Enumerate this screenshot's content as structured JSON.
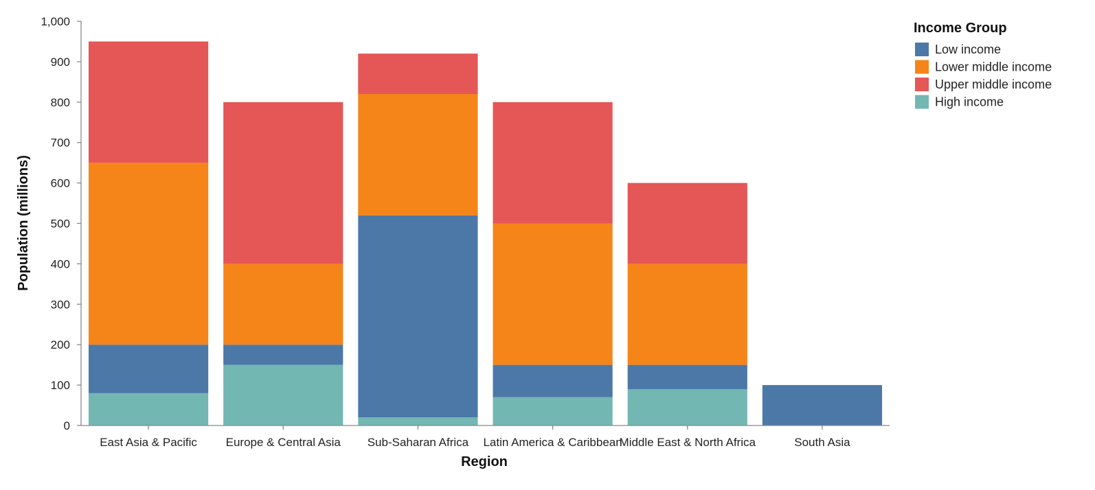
{
  "chart_data": {
    "type": "bar",
    "stacked": true,
    "xlabel": "Region",
    "ylabel": "Population (millions)",
    "ylim": [
      0,
      1000
    ],
    "yticks": [
      0,
      100,
      200,
      300,
      400,
      500,
      600,
      700,
      800,
      900,
      1000
    ],
    "ytick_labels": [
      "0",
      "100",
      "200",
      "300",
      "400",
      "500",
      "600",
      "700",
      "800",
      "900",
      "1,000"
    ],
    "categories": [
      "East Asia & Pacific",
      "Europe & Central Asia",
      "Sub-Saharan Africa",
      "Latin America & Caribbean",
      "Middle East & North Africa",
      "South Asia"
    ],
    "stack_order": [
      "High income",
      "Low income",
      "Lower middle income",
      "Upper middle income"
    ],
    "legend": {
      "title": "Income Group",
      "position": "top-right",
      "entries": [
        "Low income",
        "Lower middle income",
        "Upper middle income",
        "High income"
      ]
    },
    "colors": {
      "Low income": "#4c78a8",
      "Lower middle income": "#f58518",
      "Upper middle income": "#e45756",
      "High income": "#72b7b2"
    },
    "series": [
      {
        "name": "Low income",
        "values": [
          120,
          50,
          500,
          80,
          60,
          100
        ]
      },
      {
        "name": "Lower middle income",
        "values": [
          450,
          200,
          300,
          350,
          250,
          0
        ]
      },
      {
        "name": "Upper middle income",
        "values": [
          300,
          400,
          100,
          300,
          200,
          0
        ]
      },
      {
        "name": "High income",
        "values": [
          80,
          150,
          20,
          70,
          90,
          0
        ]
      }
    ],
    "grid": false
  }
}
